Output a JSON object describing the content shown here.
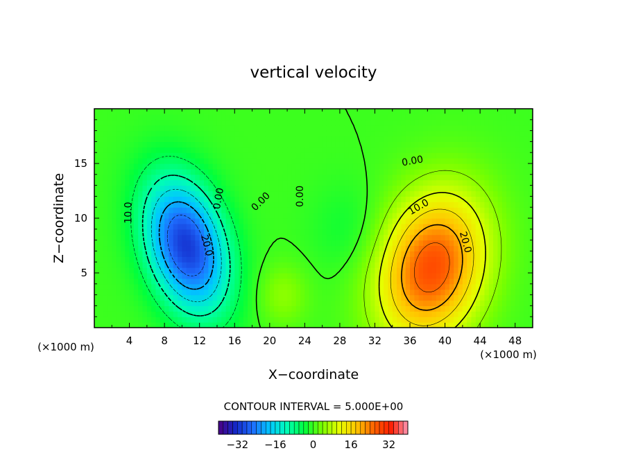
{
  "chart_data": {
    "type": "heatmap",
    "title": "vertical velocity",
    "xlabel": "X−coordinate",
    "ylabel": "Z−coordinate",
    "x_unit": "(×1000 m)",
    "z_unit": "(×1000 m)",
    "xlim": [
      0,
      50
    ],
    "ylim": [
      0,
      20
    ],
    "x_ticks": [
      4,
      8,
      12,
      16,
      20,
      24,
      28,
      32,
      36,
      40,
      44,
      48
    ],
    "y_ticks": [
      5,
      10,
      15
    ],
    "contour_interval_text": "CONTOUR INTERVAL = 5.000E+00",
    "contour_labels": [
      {
        "text": "10.0",
        "x": 3.9,
        "z": 10.5,
        "angle": -90
      },
      {
        "text": "20.0",
        "x": 12.8,
        "z": 7.5,
        "angle": 75
      },
      {
        "text": "0.00",
        "x": 14.2,
        "z": 11.8,
        "angle": -80
      },
      {
        "text": "0.00",
        "x": 19.0,
        "z": 11.5,
        "angle": -45
      },
      {
        "text": "0.00",
        "x": 23.5,
        "z": 12.0,
        "angle": -90
      },
      {
        "text": "0.00",
        "x": 36.3,
        "z": 15.2,
        "angle": -10
      },
      {
        "text": "10.0",
        "x": 37.0,
        "z": 11.0,
        "angle": -30
      },
      {
        "text": "20.0",
        "x": 42.3,
        "z": 7.8,
        "angle": 75
      }
    ],
    "fields": [
      {
        "name": "downdraft",
        "x": 10.5,
        "z": 7.5,
        "amp": -31,
        "sx": 3.0,
        "sz": 4.5,
        "rot": -25
      },
      {
        "name": "updraft",
        "x": 38.5,
        "z": 5.5,
        "amp": 28,
        "sx": 4.0,
        "sz": 5.0,
        "rot": 30
      },
      {
        "name": "weak-updraft",
        "x": 21.5,
        "z": 3.0,
        "amp": 5,
        "sx": 2.0,
        "sz": 2.0,
        "rot": 0
      },
      {
        "name": "weak-down",
        "x": 29.0,
        "z": 9.0,
        "amp": -3,
        "sx": 3.0,
        "sz": 3.0,
        "rot": 0
      }
    ],
    "colorbar": {
      "min": -40,
      "max": 40,
      "ticks": [
        -32,
        -16,
        0,
        16,
        32
      ],
      "tick_labels": [
        "−32",
        "−16",
        "0",
        "16",
        "32"
      ],
      "colors": [
        "#4b0082",
        "#1428c8",
        "#1e6eff",
        "#00c8ff",
        "#00ffb4",
        "#00ff3c",
        "#78ff00",
        "#e6ff00",
        "#ffc800",
        "#ff6400",
        "#ff1e00",
        "#ff96b4"
      ]
    }
  }
}
